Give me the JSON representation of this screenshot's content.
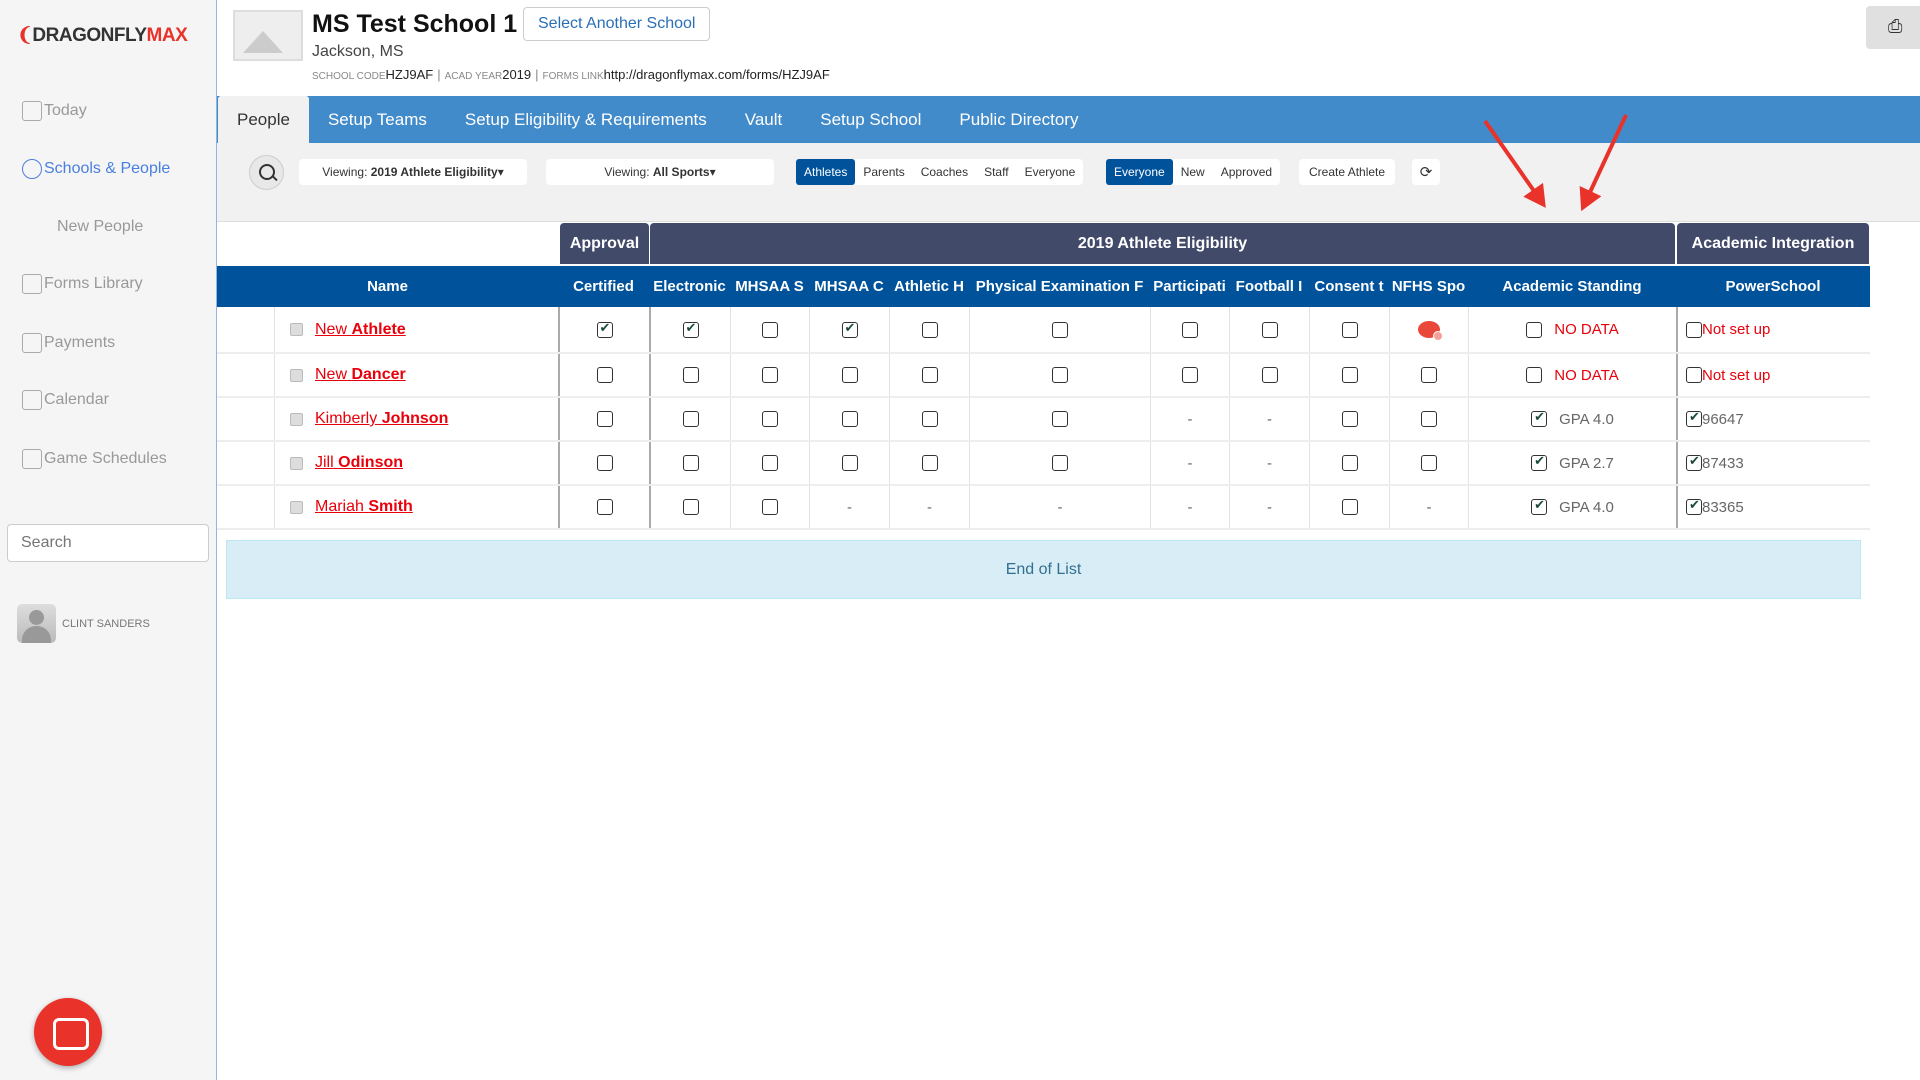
{
  "brand": {
    "logo_text": "DRAGONFLY",
    "logo_accent": "MAX",
    "accent_color": "#e8322a"
  },
  "sidebar": {
    "items": [
      {
        "label": "Today",
        "icon": "home-icon"
      },
      {
        "label": "Schools & People",
        "icon": "person-icon",
        "active": true
      },
      {
        "label": "New People",
        "sub": true
      },
      {
        "label": "Forms Library",
        "icon": "forms-icon"
      },
      {
        "label": "Payments",
        "icon": "dollar-icon"
      },
      {
        "label": "Calendar",
        "icon": "calendar-icon"
      },
      {
        "label": "Game Schedules",
        "icon": "schedule-icon"
      }
    ],
    "search_placeholder": "Search",
    "user_name": "CLINT SANDERS"
  },
  "header": {
    "school_name": "MS Test School 1",
    "select_school": "Select Another School",
    "location": "Jackson, MS",
    "school_code_label": "SCHOOL CODE",
    "school_code": "HZJ9AF",
    "acad_year_label": "ACAD YEAR",
    "acad_year": "2019",
    "forms_link_label": "FORMS LINK",
    "forms_link": "http://dragonflymax.com/forms/HZJ9AF"
  },
  "tabs": [
    "People",
    "Setup Teams",
    "Setup Eligibility & Requirements",
    "Vault",
    "Setup School",
    "Public Directory"
  ],
  "toolbar": {
    "viewing_prefix": "Viewing: ",
    "view_value": "2019 Athlete Eligibility",
    "sports_value": "All Sports",
    "roles": [
      "Athletes",
      "Parents",
      "Coaches",
      "Staff",
      "Everyone"
    ],
    "statuses": [
      "Everyone",
      "New",
      "Approved"
    ],
    "create": "Create Athlete"
  },
  "table": {
    "groups": [
      "Approval",
      "2019 Athlete Eligibility",
      "Academic Integration"
    ],
    "columns": [
      "Name",
      "Certified",
      "Electronic",
      "MHSAA S",
      "MHSAA C",
      "Athletic H",
      "Physical Examination F",
      "Participati",
      "Football I",
      "Consent t",
      "NFHS Spo",
      "Academic Standing",
      "PowerSchool"
    ],
    "rows": [
      {
        "first": "New",
        "last": "Athlete",
        "cells": [
          "checked",
          "checked",
          "unchecked",
          "checked",
          "unchecked",
          "unchecked",
          "unchecked",
          "unchecked",
          "unchecked",
          "alert"
        ],
        "academic_checked": false,
        "academic": "NO DATA",
        "powerschool_checked": false,
        "powerschool": "Not set up"
      },
      {
        "first": "New",
        "last": "Dancer",
        "cells": [
          "unchecked",
          "unchecked",
          "unchecked",
          "unchecked",
          "unchecked",
          "unchecked",
          "unchecked",
          "unchecked",
          "unchecked",
          "unchecked"
        ],
        "academic_checked": false,
        "academic": "NO DATA",
        "powerschool_checked": false,
        "powerschool": "Not set up"
      },
      {
        "first": "Kimberly",
        "last": "Johnson",
        "cells": [
          "unchecked",
          "unchecked",
          "unchecked",
          "unchecked",
          "unchecked",
          "unchecked",
          "-",
          "-",
          "unchecked",
          "unchecked"
        ],
        "academic_checked": true,
        "academic": "GPA 4.0",
        "powerschool_checked": true,
        "powerschool": "96647"
      },
      {
        "first": "Jill",
        "last": "Odinson",
        "cells": [
          "unchecked",
          "unchecked",
          "unchecked",
          "unchecked",
          "unchecked",
          "unchecked",
          "-",
          "-",
          "unchecked",
          "unchecked"
        ],
        "academic_checked": true,
        "academic": "GPA 2.7",
        "powerschool_checked": true,
        "powerschool": "87433"
      },
      {
        "first": "Mariah",
        "last": "Smith",
        "cells": [
          "unchecked",
          "unchecked",
          "unchecked",
          "-",
          "-",
          "-",
          "-",
          "-",
          "unchecked",
          "-"
        ],
        "academic_checked": true,
        "academic": "GPA 4.0",
        "powerschool_checked": true,
        "powerschool": "83365"
      }
    ],
    "end_of_list": "End of List"
  }
}
